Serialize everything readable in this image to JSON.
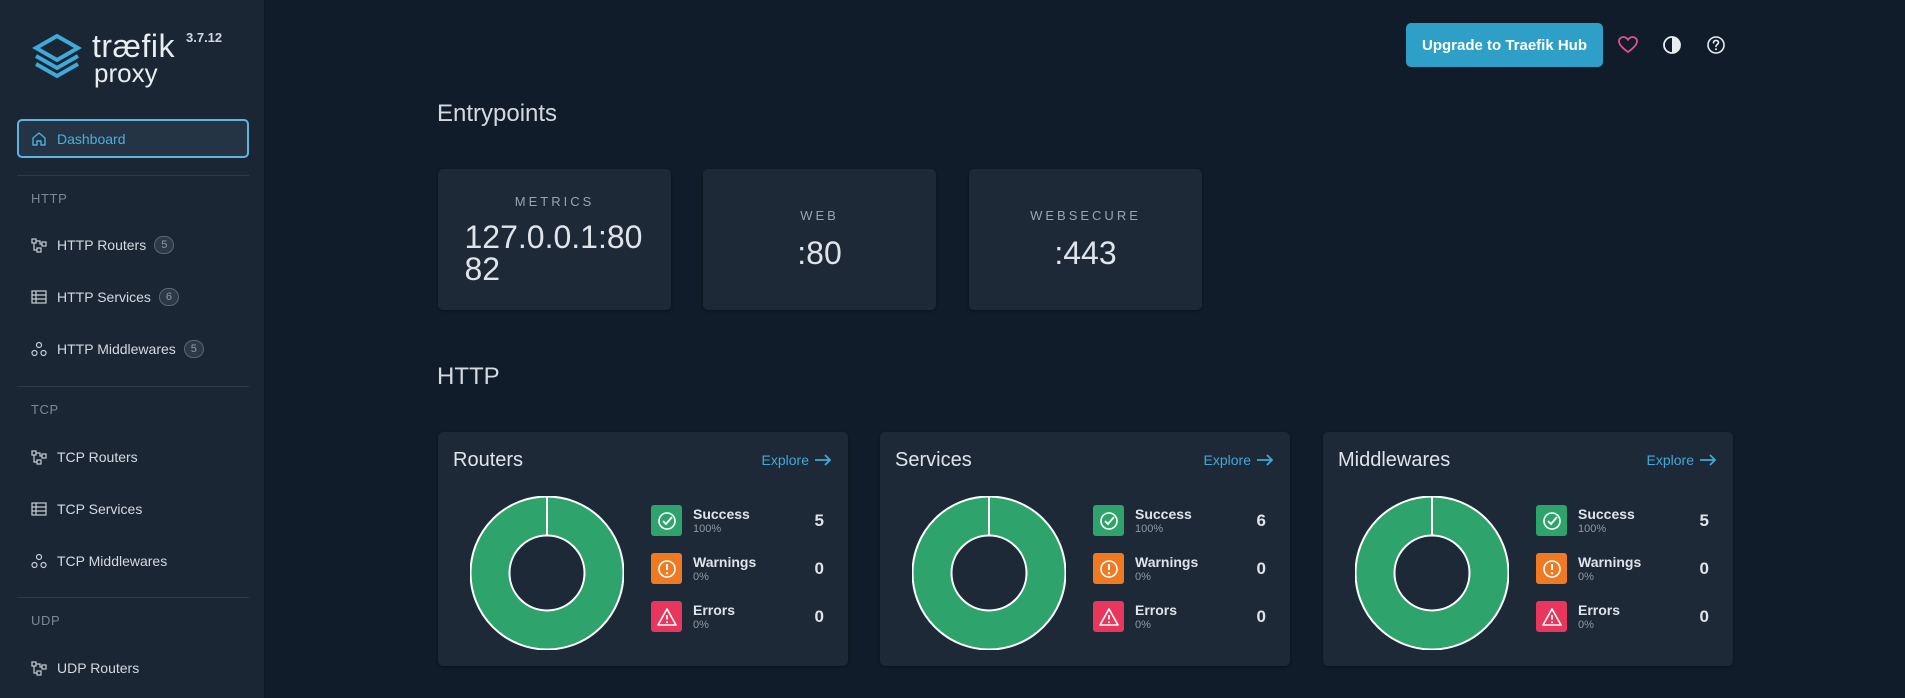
{
  "app": {
    "brand_line1": "træfik",
    "brand_line2": "proxy",
    "version": "3.7.12"
  },
  "sidebar": {
    "dashboard_label": "Dashboard",
    "sections": [
      {
        "label": "HTTP",
        "items": [
          {
            "label": "HTTP Routers",
            "count": "5",
            "icon": "routers-icon"
          },
          {
            "label": "HTTP Services",
            "count": "6",
            "icon": "services-icon"
          },
          {
            "label": "HTTP Middlewares",
            "count": "5",
            "icon": "middlewares-icon"
          }
        ]
      },
      {
        "label": "TCP",
        "items": [
          {
            "label": "TCP Routers",
            "icon": "routers-icon"
          },
          {
            "label": "TCP Services",
            "icon": "services-icon"
          },
          {
            "label": "TCP Middlewares",
            "icon": "middlewares-icon"
          }
        ]
      },
      {
        "label": "UDP",
        "items": [
          {
            "label": "UDP Routers",
            "icon": "routers-icon"
          }
        ]
      }
    ]
  },
  "topbar": {
    "upgrade_label": "Upgrade to Traefik Hub",
    "icons": [
      "heart-icon",
      "theme-contrast-icon",
      "help-icon"
    ]
  },
  "entrypoints": {
    "heading": "Entrypoints",
    "items": [
      {
        "name": "METRICS",
        "value": "127.0.0.1:8082"
      },
      {
        "name": "WEB",
        "value": ":80"
      },
      {
        "name": "WEBSECURE",
        "value": ":443"
      }
    ]
  },
  "http": {
    "heading": "HTTP",
    "explore_label": "Explore",
    "cards": [
      {
        "title": "Routers",
        "success": {
          "label": "Success",
          "pct": "100%",
          "count": "5"
        },
        "warnings": {
          "label": "Warnings",
          "pct": "0%",
          "count": "0"
        },
        "errors": {
          "label": "Errors",
          "pct": "0%",
          "count": "0"
        }
      },
      {
        "title": "Services",
        "success": {
          "label": "Success",
          "pct": "100%",
          "count": "6"
        },
        "warnings": {
          "label": "Warnings",
          "pct": "0%",
          "count": "0"
        },
        "errors": {
          "label": "Errors",
          "pct": "0%",
          "count": "0"
        }
      },
      {
        "title": "Middlewares",
        "success": {
          "label": "Success",
          "pct": "100%",
          "count": "5"
        },
        "warnings": {
          "label": "Warnings",
          "pct": "0%",
          "count": "0"
        },
        "errors": {
          "label": "Errors",
          "pct": "0%",
          "count": "0"
        }
      }
    ]
  },
  "colors": {
    "success": "#2ea46c",
    "warning": "#ef7a22",
    "error": "#e8365c",
    "accent": "#2e9fc7"
  }
}
